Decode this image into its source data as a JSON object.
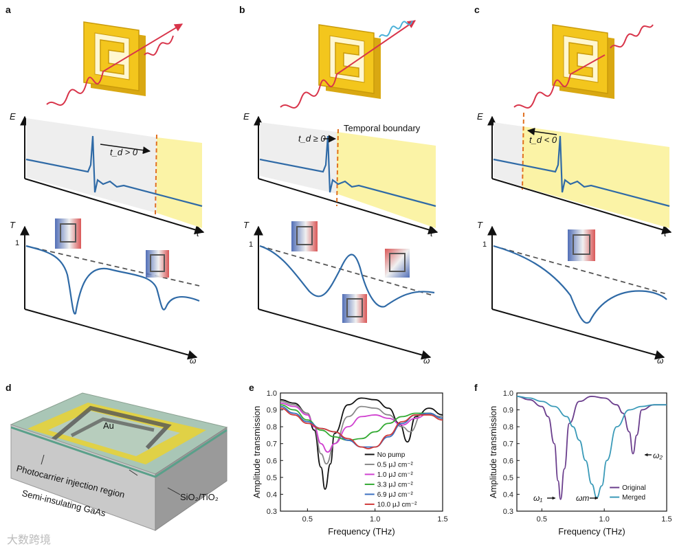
{
  "panels": {
    "a": {
      "label": "a",
      "e_axis": "E",
      "t_axis": "t",
      "T_axis": "T",
      "one": "1",
      "omega": "ω",
      "annot": "t_d > 0"
    },
    "b": {
      "label": "b",
      "e_axis": "E",
      "t_axis": "t",
      "T_axis": "T",
      "one": "1",
      "omega": "ω",
      "annot": "t_d ≥ 0",
      "boundary": "Temporal boundary"
    },
    "c": {
      "label": "c",
      "e_axis": "E",
      "t_axis": "t",
      "T_axis": "T",
      "one": "1",
      "omega": "ω",
      "annot": "t_d < 0"
    },
    "d": {
      "label": "d",
      "au": "Au",
      "injection": "Photocarrier injection region",
      "substrate": "Semi-insulating GaAs",
      "oxide": "SiO₂/TiO₂"
    },
    "e": {
      "label": "e"
    },
    "f": {
      "label": "f",
      "w1": "ω₁",
      "wm": "ωm",
      "w2": "ω₂"
    }
  },
  "watermark": "大数跨境",
  "colors": {
    "trace": "#2f6aa6",
    "pulse": "#d8344a",
    "gold": "#f3c61d",
    "boundary": "#e07020",
    "yellow_bg": "#fbf3a6"
  },
  "chart_data": [
    {
      "id": "e",
      "type": "line",
      "xlabel": "Frequency (THz)",
      "ylabel": "Amplitude transmission",
      "xlim": [
        0.3,
        1.5
      ],
      "ylim": [
        0.3,
        1.0
      ],
      "xticks": [
        "0.5",
        "1.0",
        "1.5"
      ],
      "yticks": [
        "0.3",
        "0.4",
        "0.5",
        "0.6",
        "0.7",
        "0.8",
        "0.9",
        "1.0"
      ],
      "legend_position": "center-right",
      "series": [
        {
          "name": "No pump",
          "color": "#111111",
          "x": [
            0.3,
            0.4,
            0.5,
            0.55,
            0.6,
            0.63,
            0.67,
            0.7,
            0.8,
            0.9,
            1.0,
            1.1,
            1.18,
            1.24,
            1.3,
            1.4,
            1.5
          ],
          "y": [
            0.96,
            0.94,
            0.88,
            0.78,
            0.56,
            0.43,
            0.58,
            0.76,
            0.93,
            0.97,
            0.96,
            0.91,
            0.82,
            0.71,
            0.86,
            0.91,
            0.87
          ]
        },
        {
          "name": "0.5 μJ cm⁻²",
          "color": "#888888",
          "x": [
            0.3,
            0.4,
            0.5,
            0.55,
            0.6,
            0.64,
            0.7,
            0.8,
            0.9,
            1.0,
            1.1,
            1.2,
            1.26,
            1.35,
            1.5
          ],
          "y": [
            0.95,
            0.93,
            0.88,
            0.8,
            0.64,
            0.58,
            0.7,
            0.86,
            0.92,
            0.91,
            0.87,
            0.8,
            0.77,
            0.88,
            0.86
          ]
        },
        {
          "name": "1.0 μJ cm⁻²",
          "color": "#d040d0",
          "x": [
            0.3,
            0.4,
            0.5,
            0.55,
            0.6,
            0.65,
            0.7,
            0.8,
            0.9,
            1.0,
            1.1,
            1.2,
            1.3,
            1.4,
            1.5
          ],
          "y": [
            0.94,
            0.92,
            0.87,
            0.8,
            0.7,
            0.65,
            0.7,
            0.8,
            0.86,
            0.87,
            0.85,
            0.81,
            0.85,
            0.88,
            0.85
          ]
        },
        {
          "name": "3.3 μJ cm⁻²",
          "color": "#33aa33",
          "x": [
            0.3,
            0.4,
            0.5,
            0.6,
            0.7,
            0.8,
            0.9,
            1.0,
            1.1,
            1.2,
            1.3,
            1.4,
            1.5
          ],
          "y": [
            0.93,
            0.9,
            0.84,
            0.78,
            0.74,
            0.72,
            0.73,
            0.77,
            0.82,
            0.86,
            0.88,
            0.88,
            0.85
          ]
        },
        {
          "name": "6.9 μJ cm⁻²",
          "color": "#3a6fc0",
          "x": [
            0.3,
            0.4,
            0.5,
            0.6,
            0.7,
            0.8,
            0.9,
            1.0,
            1.1,
            1.2,
            1.3,
            1.4,
            1.5
          ],
          "y": [
            0.92,
            0.88,
            0.83,
            0.79,
            0.77,
            0.72,
            0.68,
            0.68,
            0.74,
            0.82,
            0.87,
            0.88,
            0.85
          ]
        },
        {
          "name": "10.0 μJ cm⁻²",
          "color": "#d03a3a",
          "x": [
            0.3,
            0.4,
            0.5,
            0.6,
            0.7,
            0.8,
            0.9,
            0.95,
            1.0,
            1.1,
            1.2,
            1.3,
            1.4,
            1.5
          ],
          "y": [
            0.91,
            0.87,
            0.82,
            0.79,
            0.77,
            0.73,
            0.68,
            0.67,
            0.68,
            0.75,
            0.83,
            0.87,
            0.87,
            0.84
          ]
        }
      ]
    },
    {
      "id": "f",
      "type": "line",
      "xlabel": "Frequency (THz)",
      "ylabel": "Amplitude transmission",
      "xlim": [
        0.3,
        1.5
      ],
      "ylim": [
        0.3,
        1.0
      ],
      "xticks": [
        "0.5",
        "1.0",
        "1.5"
      ],
      "yticks": [
        "0.3",
        "0.4",
        "0.5",
        "0.6",
        "0.7",
        "0.8",
        "0.9",
        "1.0"
      ],
      "legend_position": "bottom-right",
      "series": [
        {
          "name": "Original",
          "color": "#6a3d8c",
          "x": [
            0.3,
            0.4,
            0.5,
            0.55,
            0.6,
            0.63,
            0.65,
            0.68,
            0.72,
            0.8,
            0.9,
            1.0,
            1.1,
            1.15,
            1.2,
            1.23,
            1.26,
            1.3,
            1.4,
            1.5
          ],
          "y": [
            0.98,
            0.96,
            0.92,
            0.86,
            0.7,
            0.48,
            0.37,
            0.55,
            0.82,
            0.95,
            0.98,
            0.97,
            0.93,
            0.88,
            0.77,
            0.64,
            0.75,
            0.9,
            0.93,
            0.93
          ]
        },
        {
          "name": "Merged",
          "color": "#3a9ab8",
          "x": [
            0.3,
            0.4,
            0.5,
            0.6,
            0.7,
            0.75,
            0.8,
            0.85,
            0.9,
            0.94,
            0.98,
            1.02,
            1.1,
            1.2,
            1.3,
            1.4,
            1.5
          ],
          "y": [
            0.98,
            0.97,
            0.95,
            0.92,
            0.86,
            0.8,
            0.72,
            0.6,
            0.46,
            0.38,
            0.45,
            0.6,
            0.8,
            0.9,
            0.92,
            0.93,
            0.93
          ]
        }
      ]
    }
  ]
}
